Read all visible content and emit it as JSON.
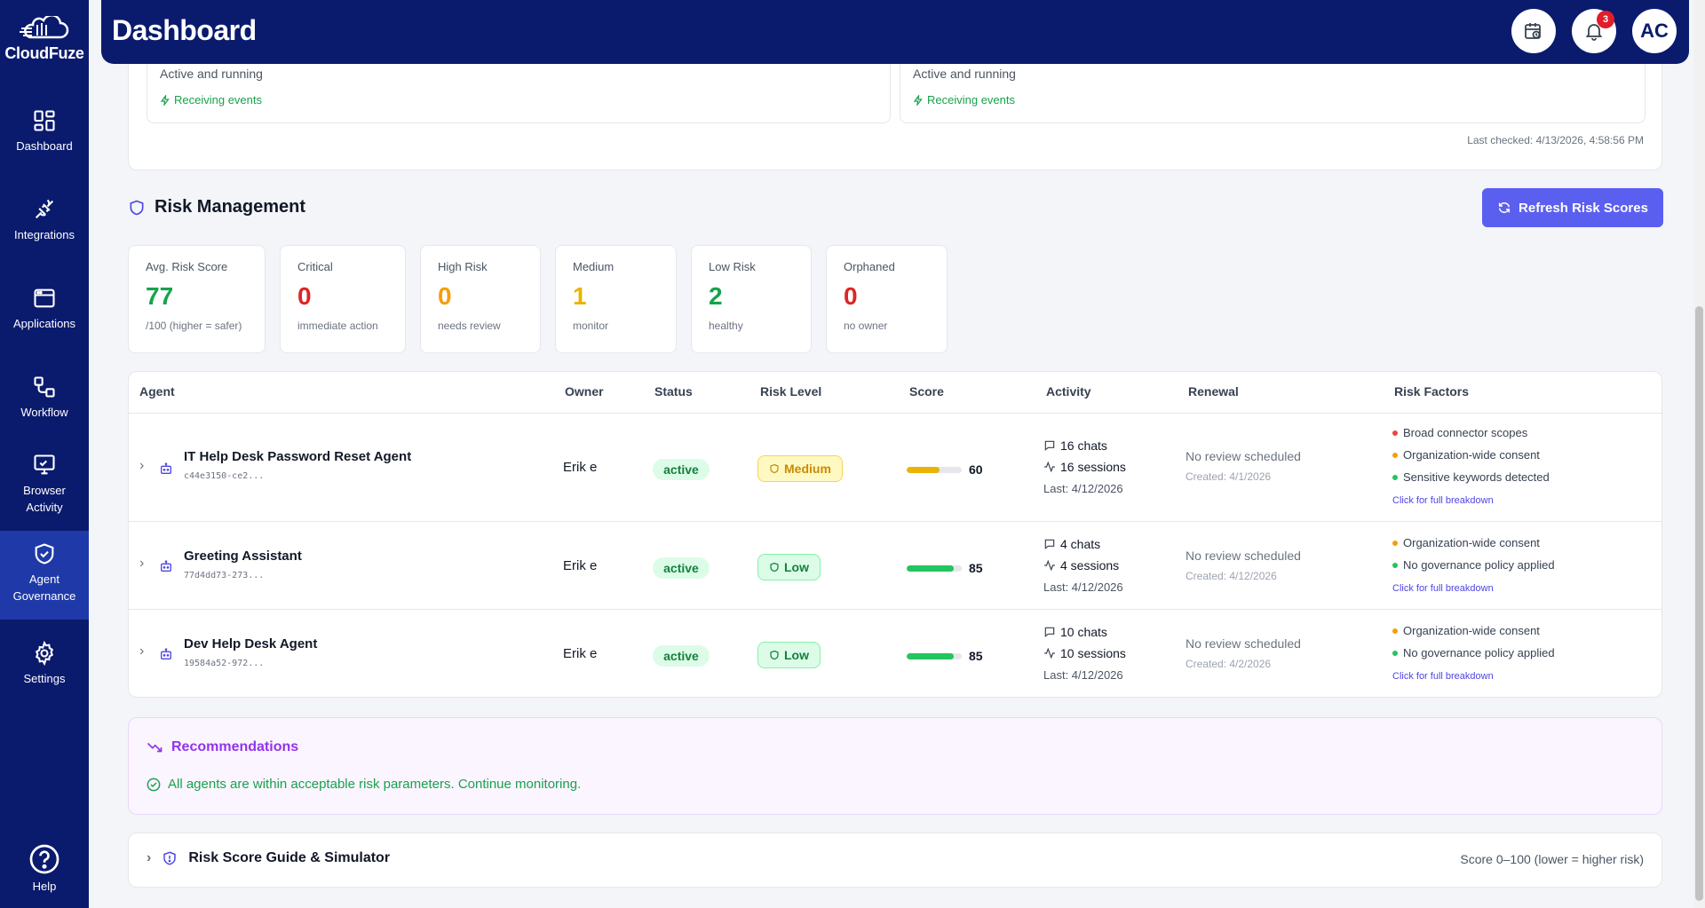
{
  "sidebar": {
    "brand": "CloudFuze",
    "items": [
      {
        "label": "Dashboard",
        "icon": "dashboard-icon"
      },
      {
        "label": "Integrations",
        "icon": "plug-icon"
      },
      {
        "label": "Applications",
        "icon": "window-icon"
      },
      {
        "label": "Workflow",
        "icon": "workflow-icon"
      },
      {
        "label1": "Browser",
        "label2": "Activity",
        "icon": "monitor-activity-icon"
      },
      {
        "label1": "Agent",
        "label2": "Governance",
        "icon": "shield-check-icon",
        "active": true
      },
      {
        "label": "Settings",
        "icon": "gear-icon"
      },
      {
        "label": "Help",
        "icon": "help-icon"
      }
    ]
  },
  "header": {
    "title": "Dashboard",
    "notification_count": "3",
    "avatar_initials": "AC"
  },
  "integrations_status": {
    "cards": [
      {
        "status": "Active and running",
        "events": "Receiving events"
      },
      {
        "status": "Active and running",
        "events": "Receiving events"
      }
    ],
    "last_checked": "Last checked: 4/13/2026, 4:58:56 PM"
  },
  "risk_management": {
    "title": "Risk Management",
    "refresh_label": "Refresh Risk Scores",
    "stats": [
      {
        "label": "Avg. Risk Score",
        "value": "77",
        "sub": "/100 (higher = safer)",
        "color": "#16a34a"
      },
      {
        "label": "Critical",
        "value": "0",
        "sub": "immediate action",
        "color": "#dc2626"
      },
      {
        "label": "High Risk",
        "value": "0",
        "sub": "needs review",
        "color": "#f59e0b"
      },
      {
        "label": "Medium",
        "value": "1",
        "sub": "monitor",
        "color": "#eab308"
      },
      {
        "label": "Low Risk",
        "value": "2",
        "sub": "healthy",
        "color": "#16a34a"
      },
      {
        "label": "Orphaned",
        "value": "0",
        "sub": "no owner",
        "color": "#dc2626"
      }
    ]
  },
  "table": {
    "columns": [
      "Agent",
      "Owner",
      "Status",
      "Risk Level",
      "Score",
      "Activity",
      "Renewal",
      "Risk Factors"
    ],
    "rows": [
      {
        "name": "IT Help Desk Password Reset Agent",
        "id": "c44e3150-ce2...",
        "owner": "Erik e",
        "status": "active",
        "risk_level": "Medium",
        "score": 60,
        "score_label": "60",
        "chats": "16 chats",
        "sessions": "16 sessions",
        "last": "Last: 4/12/2026",
        "renewal": "No review scheduled",
        "created": "Created: 4/1/2026",
        "factors": [
          {
            "text": "Broad connector scopes",
            "color": "#ef4444"
          },
          {
            "text": "Organization-wide consent",
            "color": "#f59e0b"
          },
          {
            "text": "Sensitive keywords detected",
            "color": "#22c55e"
          }
        ],
        "breakdown": "Click for full breakdown"
      },
      {
        "name": "Greeting Assistant",
        "id": "77d4dd73-273...",
        "owner": "Erik e",
        "status": "active",
        "risk_level": "Low",
        "score": 85,
        "score_label": "85",
        "chats": "4 chats",
        "sessions": "4 sessions",
        "last": "Last: 4/12/2026",
        "renewal": "No review scheduled",
        "created": "Created: 4/12/2026",
        "factors": [
          {
            "text": "Organization-wide consent",
            "color": "#f59e0b"
          },
          {
            "text": "No governance policy applied",
            "color": "#22c55e"
          }
        ],
        "breakdown": "Click for full breakdown"
      },
      {
        "name": "Dev Help Desk Agent",
        "id": "19584a52-972...",
        "owner": "Erik e",
        "status": "active",
        "risk_level": "Low",
        "score": 85,
        "score_label": "85",
        "chats": "10 chats",
        "sessions": "10 sessions",
        "last": "Last: 4/12/2026",
        "renewal": "No review scheduled",
        "created": "Created: 4/2/2026",
        "factors": [
          {
            "text": "Organization-wide consent",
            "color": "#f59e0b"
          },
          {
            "text": "No governance policy applied",
            "color": "#22c55e"
          }
        ],
        "breakdown": "Click for full breakdown"
      }
    ]
  },
  "recommendations": {
    "title": "Recommendations",
    "text": "All agents are within acceptable risk parameters. Continue monitoring."
  },
  "guide": {
    "title": "Risk Score Guide & Simulator",
    "range": "Score 0–100 (lower = higher risk)"
  }
}
